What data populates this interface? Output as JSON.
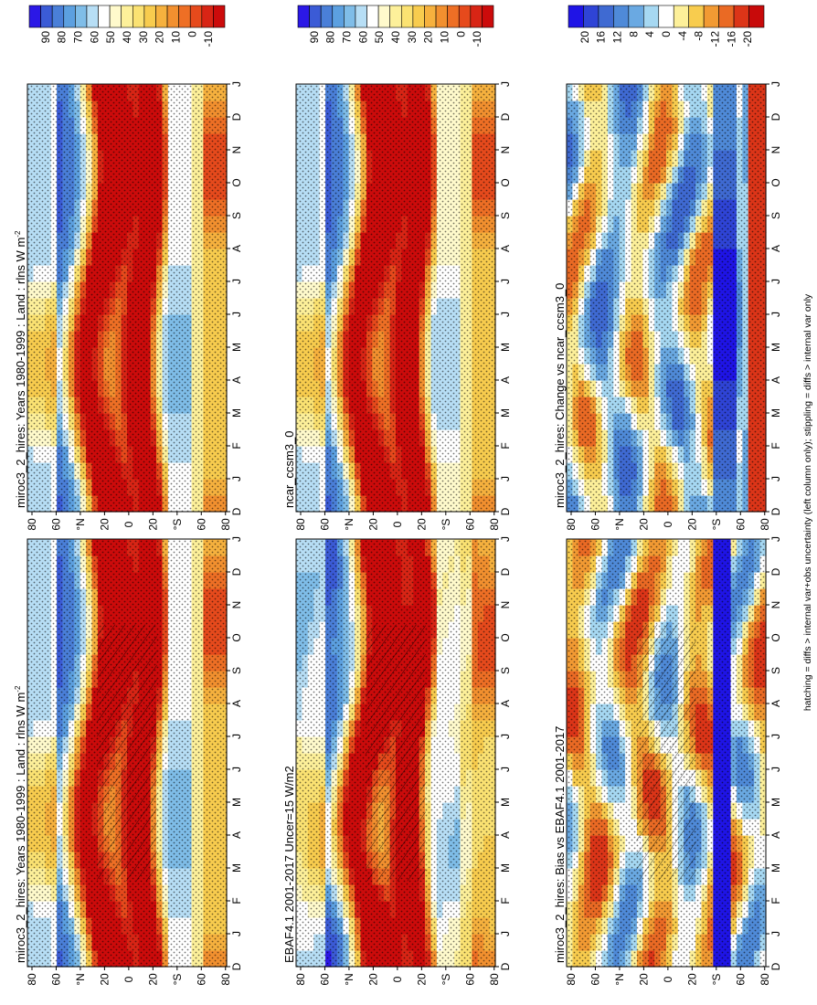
{
  "figure": {
    "footnote": "hatching = diffs > internal var+obs uncertainty (left column only); stippling = diffs > internal var only"
  },
  "chart_data": [
    {
      "type": "heatmap",
      "id": "p00",
      "title": "miroc3_2_hires: Years 1980-1999 : Land : rlns W m",
      "title_sup": "-2",
      "x_ticks": [
        "D",
        "J",
        "F",
        "M",
        "A",
        "M",
        "J",
        "J",
        "A",
        "S",
        "O",
        "N",
        "D",
        "J"
      ],
      "y_ticks": [
        "80",
        "60",
        "°N",
        "20",
        "0",
        "20",
        "°S",
        "60",
        "80"
      ],
      "colorbar_ticks": [
        "90",
        "80",
        "70",
        "60",
        "50",
        "40",
        "30",
        "20",
        "10",
        "0",
        "-10"
      ],
      "vmin": -15,
      "vmax": 95,
      "kind": "abs",
      "hatching": true
    },
    {
      "type": "heatmap",
      "id": "p01",
      "title": "miroc3_2_hires: Years 1980-1999 : Land : rlns W m",
      "title_sup": "-2",
      "x_ticks": [
        "D",
        "J",
        "F",
        "M",
        "A",
        "M",
        "J",
        "J",
        "A",
        "S",
        "O",
        "N",
        "D",
        "J"
      ],
      "y_ticks": [
        "80",
        "60",
        "°N",
        "20",
        "0",
        "20",
        "°S",
        "60",
        "80"
      ],
      "colorbar_ticks": [
        "90",
        "80",
        "70",
        "60",
        "50",
        "40",
        "30",
        "20",
        "10",
        "0",
        "-10"
      ],
      "vmin": -15,
      "vmax": 95,
      "kind": "abs",
      "hatching": false
    },
    {
      "type": "heatmap",
      "id": "p10",
      "title": "EBAF4.1 2001-2017 Uncer=15 W/m2",
      "title_sup": "",
      "x_ticks": [
        "D",
        "J",
        "F",
        "M",
        "A",
        "M",
        "J",
        "J",
        "A",
        "S",
        "O",
        "N",
        "D",
        "J"
      ],
      "y_ticks": [
        "80",
        "60",
        "°N",
        "20",
        "0",
        "20",
        "°S",
        "60",
        "80"
      ],
      "colorbar_ticks": [
        "90",
        "80",
        "70",
        "60",
        "50",
        "40",
        "30",
        "20",
        "10",
        "0",
        "-10"
      ],
      "vmin": -15,
      "vmax": 95,
      "kind": "abs",
      "hatching": true
    },
    {
      "type": "heatmap",
      "id": "p11",
      "title": "ncar_ccsm3_0",
      "title_sup": "",
      "x_ticks": [
        "D",
        "J",
        "F",
        "M",
        "A",
        "M",
        "J",
        "J",
        "A",
        "S",
        "O",
        "N",
        "D",
        "J"
      ],
      "y_ticks": [
        "80",
        "60",
        "°N",
        "20",
        "0",
        "20",
        "°S",
        "60",
        "80"
      ],
      "colorbar_ticks": [
        "90",
        "80",
        "70",
        "60",
        "50",
        "40",
        "30",
        "20",
        "10",
        "0",
        "-10"
      ],
      "vmin": -15,
      "vmax": 95,
      "kind": "abs",
      "hatching": false
    },
    {
      "type": "heatmap",
      "id": "p20",
      "title": "miroc3_2_hires: Bias vs EBAF4.1 2001-2017",
      "title_sup": "",
      "x_ticks": [
        "D",
        "J",
        "F",
        "M",
        "A",
        "M",
        "J",
        "J",
        "A",
        "S",
        "O",
        "N",
        "D",
        "J"
      ],
      "y_ticks": [
        "80",
        "60",
        "°N",
        "20",
        "0",
        "20",
        "°S",
        "60",
        "80"
      ],
      "colorbar_ticks": [
        "20",
        "16",
        "12",
        "8",
        "4",
        "0",
        "-4",
        "-8",
        "-12",
        "-16",
        "-20"
      ],
      "vmin": -24,
      "vmax": 24,
      "kind": "diff",
      "hatching": true
    },
    {
      "type": "heatmap",
      "id": "p21",
      "title": "miroc3_2_hires: Change vs ncar_ccsm3_0",
      "title_sup": "",
      "x_ticks": [
        "D",
        "J",
        "F",
        "M",
        "A",
        "M",
        "J",
        "J",
        "A",
        "S",
        "O",
        "N",
        "D",
        "J"
      ],
      "y_ticks": [
        "80",
        "60",
        "°N",
        "20",
        "0",
        "20",
        "°S",
        "60",
        "80"
      ],
      "colorbar_ticks": [
        "20",
        "16",
        "12",
        "8",
        "4",
        "0",
        "-4",
        "-8",
        "-12",
        "-16",
        "-20"
      ],
      "vmin": -24,
      "vmax": 24,
      "kind": "diff",
      "hatching": false
    }
  ],
  "colors": {
    "scale_abs": [
      "#2b18e6",
      "#3b5bd6",
      "#4a7fd8",
      "#5ca0e0",
      "#7fbde8",
      "#b7def5",
      "#ffffff",
      "#fffacc",
      "#fdf09a",
      "#fbe272",
      "#f8cc4e",
      "#f6b13e",
      "#f2902f",
      "#ee6f25",
      "#e64a1c",
      "#d82515",
      "#cc0b0b"
    ],
    "scale_diff": [
      "#1f14e6",
      "#2f44d6",
      "#3f6ad2",
      "#4f8ad8",
      "#6aa9e2",
      "#a6d8f2",
      "#ffffff",
      "#fdf09a",
      "#f8cc4e",
      "#f29a33",
      "#ea6a24",
      "#dc3518",
      "#c80a0a"
    ]
  }
}
